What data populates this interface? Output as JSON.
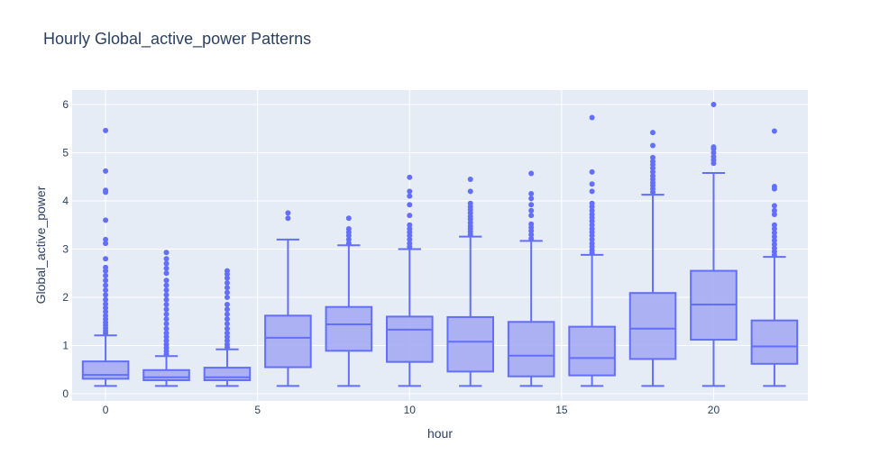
{
  "chart_data": {
    "type": "box",
    "title": "Hourly Global_active_power Patterns",
    "xlabel": "hour",
    "ylabel": "Global_active_power",
    "xlim": [
      -1.1,
      23.1
    ],
    "ylim": [
      -0.15,
      6.3
    ],
    "xticks": [
      0,
      5,
      10,
      15,
      20
    ],
    "yticks": [
      0,
      1,
      2,
      3,
      4,
      5,
      6
    ],
    "grid": true,
    "legend": "none",
    "colors": {
      "plot_bg": "#e5ecf6",
      "grid": "#ffffff",
      "box_line": "#636efa",
      "box_fill": "#a5abf4",
      "text": "#2a3f5f"
    },
    "boxes": [
      {
        "x": 0,
        "min": 0.16,
        "q1": 0.31,
        "median": 0.39,
        "q3": 0.67,
        "max": 1.21,
        "outliers": [
          1.25,
          1.3,
          1.36,
          1.42,
          1.48,
          1.55,
          1.62,
          1.7,
          1.78,
          1.86,
          1.95,
          2.05,
          2.15,
          2.25,
          2.35,
          2.45,
          2.55,
          2.62,
          2.8,
          3.12,
          3.2,
          3.6,
          4.18,
          4.22,
          4.62,
          5.46
        ]
      },
      {
        "x": 2,
        "min": 0.16,
        "q1": 0.28,
        "median": 0.34,
        "q3": 0.49,
        "max": 0.78,
        "outliers": [
          0.82,
          0.88,
          0.95,
          1.02,
          1.1,
          1.18,
          1.26,
          1.35,
          1.45,
          1.55,
          1.65,
          1.75,
          1.85,
          1.95,
          2.05,
          2.15,
          2.25,
          2.35,
          2.5,
          2.6,
          2.7,
          2.8,
          2.93
        ]
      },
      {
        "x": 4,
        "min": 0.16,
        "q1": 0.28,
        "median": 0.34,
        "q3": 0.54,
        "max": 0.92,
        "outliers": [
          0.96,
          1.02,
          1.1,
          1.18,
          1.26,
          1.35,
          1.45,
          1.55,
          1.65,
          1.75,
          1.85,
          2.0,
          2.1,
          2.2,
          2.3,
          2.4,
          2.48,
          2.55
        ]
      },
      {
        "x": 6,
        "min": 0.16,
        "q1": 0.55,
        "median": 1.16,
        "q3": 1.62,
        "max": 3.2,
        "outliers": [
          3.64,
          3.75
        ]
      },
      {
        "x": 8,
        "min": 0.16,
        "q1": 0.89,
        "median": 1.44,
        "q3": 1.8,
        "max": 3.08,
        "outliers": [
          3.12,
          3.2,
          3.28,
          3.35,
          3.42,
          3.64
        ]
      },
      {
        "x": 10,
        "min": 0.16,
        "q1": 0.66,
        "median": 1.33,
        "q3": 1.6,
        "max": 3.0,
        "outliers": [
          3.05,
          3.12,
          3.2,
          3.28,
          3.35,
          3.42,
          3.5,
          3.7,
          3.92,
          4.1,
          4.2,
          4.49
        ]
      },
      {
        "x": 12,
        "min": 0.16,
        "q1": 0.46,
        "median": 1.08,
        "q3": 1.59,
        "max": 3.26,
        "outliers": [
          3.3,
          3.36,
          3.42,
          3.48,
          3.55,
          3.62,
          3.68,
          3.75,
          3.82,
          3.88,
          3.95,
          4.2,
          4.45
        ]
      },
      {
        "x": 14,
        "min": 0.16,
        "q1": 0.36,
        "median": 0.79,
        "q3": 1.49,
        "max": 3.17,
        "outliers": [
          3.22,
          3.3,
          3.38,
          3.45,
          3.52,
          3.7,
          3.8,
          3.92,
          4.05,
          4.15,
          4.57
        ]
      },
      {
        "x": 16,
        "min": 0.16,
        "q1": 0.38,
        "median": 0.74,
        "q3": 1.39,
        "max": 2.88,
        "outliers": [
          2.92,
          2.98,
          3.05,
          3.12,
          3.2,
          3.28,
          3.35,
          3.42,
          3.5,
          3.58,
          3.65,
          3.72,
          3.8,
          3.88,
          3.95,
          4.2,
          4.35,
          4.6,
          5.73
        ]
      },
      {
        "x": 18,
        "min": 0.16,
        "q1": 0.72,
        "median": 1.35,
        "q3": 2.09,
        "max": 4.13,
        "outliers": [
          4.18,
          4.25,
          4.32,
          4.38,
          4.45,
          4.52,
          4.6,
          4.68,
          4.75,
          4.82,
          4.9,
          5.15,
          5.42
        ]
      },
      {
        "x": 20,
        "min": 0.16,
        "q1": 1.12,
        "median": 1.85,
        "q3": 2.55,
        "max": 4.58,
        "outliers": [
          4.78,
          4.85,
          4.92,
          5.0,
          5.08,
          5.12,
          6.0
        ]
      },
      {
        "x": 22,
        "min": 0.16,
        "q1": 0.62,
        "median": 0.98,
        "q3": 1.52,
        "max": 2.84,
        "outliers": [
          2.88,
          2.95,
          3.02,
          3.1,
          3.18,
          3.26,
          3.34,
          3.42,
          3.5,
          3.72,
          3.8,
          3.9,
          4.25,
          4.3,
          5.45
        ]
      }
    ]
  }
}
